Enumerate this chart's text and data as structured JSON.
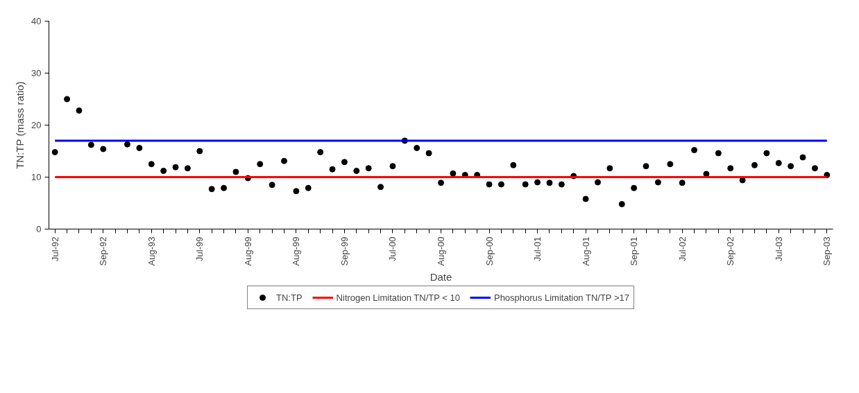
{
  "chart_data": {
    "type": "scatter",
    "xlabel": "Date",
    "ylabel": "TN:TP (mass ratio)",
    "categories": [
      "Jul-92",
      null,
      null,
      null,
      "Sep-92",
      null,
      null,
      null,
      "Aug-93",
      null,
      null,
      null,
      "Jul-99",
      null,
      null,
      null,
      "Aug-99",
      null,
      null,
      null,
      "Aug-99",
      null,
      null,
      null,
      "Sep-99",
      null,
      null,
      null,
      "Jul-00",
      null,
      null,
      null,
      "Aug-00",
      null,
      null,
      null,
      "Sep-00",
      null,
      null,
      null,
      "Jul-01",
      null,
      null,
      null,
      "Aug-01",
      null,
      null,
      null,
      "Sep-01",
      null,
      null,
      null,
      "Jul-02",
      null,
      null,
      null,
      "Sep-02",
      null,
      null,
      null,
      "Jul-03",
      null,
      null,
      null,
      "Sep-03"
    ],
    "series": [
      {
        "name": "TN:TP",
        "color": "#000000",
        "values": [
          14.8,
          25.0,
          22.8,
          16.2,
          15.4,
          null,
          16.3,
          15.6,
          12.5,
          11.2,
          11.9,
          11.7,
          15.0,
          7.7,
          7.9,
          11.0,
          9.8,
          12.5,
          8.5,
          13.1,
          7.3,
          7.9,
          14.8,
          11.5,
          12.9,
          11.2,
          11.7,
          8.1,
          12.1,
          17.0,
          15.6,
          14.6,
          8.9,
          10.7,
          10.4,
          10.4,
          8.6,
          8.6,
          12.3,
          8.6,
          9.0,
          8.9,
          8.6,
          10.2,
          5.8,
          9.0,
          11.7,
          4.8,
          7.9,
          12.1,
          9.0,
          12.5,
          8.9,
          15.2,
          10.6,
          14.6,
          11.7,
          9.4,
          12.3,
          14.6,
          12.7,
          12.1,
          13.8,
          11.7,
          10.4
        ]
      }
    ],
    "ref_lines": [
      {
        "axis": "y",
        "value": 10,
        "label": "Nitrogen Limitation TN/TP < 10",
        "color": "#ff0000"
      },
      {
        "axis": "y",
        "value": 17,
        "label": "Phosphorus Limitation TN/TP >17",
        "color": "#0000ff"
      }
    ],
    "ylim": [
      0,
      40
    ],
    "yticks": [
      0,
      10,
      20,
      30,
      40
    ],
    "grid": false,
    "legend": "bottom",
    "marker": "circle"
  }
}
